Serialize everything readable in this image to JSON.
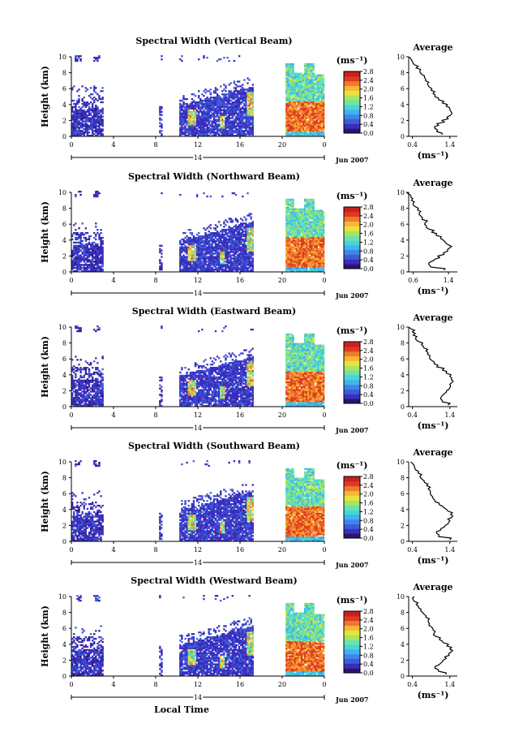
{
  "figure": {
    "xlabel": "Local Time",
    "date_label": "Jun 2007",
    "day_label": "14",
    "time_ticks": [
      "0",
      "4",
      "8",
      "12",
      "16",
      "20",
      "0"
    ],
    "height_label": "Height (km)",
    "height_ticks": [
      "0",
      "2",
      "4",
      "6",
      "8",
      "10"
    ],
    "unit_label": "(ms⁻¹)",
    "colorbar_ticks": [
      "0.0",
      "0.4",
      "0.8",
      "1.2",
      "1.6",
      "2.0",
      "2.4",
      "2.8"
    ],
    "average_title": "Average",
    "average_xlabel": "(ms⁻¹)",
    "colormap": [
      "#2a1470",
      "#3a2dbb",
      "#3f5ad8",
      "#3f86e8",
      "#3fb4ee",
      "#48d6d4",
      "#6ee2a8",
      "#a8e65f",
      "#e9e23a",
      "#f5b838",
      "#f07a2c",
      "#e03a22",
      "#c8201c"
    ]
  },
  "chart_data": [
    {
      "type": "heatmap",
      "title": "Spectral Width (Vertical Beam)",
      "average_ticks": [
        "0.4",
        "1.4"
      ],
      "average_xlim": [
        0.3,
        1.6
      ],
      "average_profile": {
        "height_km": [
          0.2,
          0.6,
          1.0,
          1.4,
          1.8,
          2.2,
          2.6,
          3.0,
          3.4,
          3.8,
          4.2,
          4.6,
          5.0,
          5.4,
          5.8,
          6.2,
          6.6,
          7.0,
          7.4,
          7.8,
          8.2,
          8.6,
          9.0,
          9.4,
          9.8
        ],
        "width_ms": [
          1.2,
          1.05,
          1.0,
          1.1,
          1.25,
          1.35,
          1.4,
          1.45,
          1.4,
          1.3,
          1.2,
          1.1,
          1.0,
          0.95,
          0.9,
          0.85,
          0.8,
          0.75,
          0.72,
          0.65,
          0.6,
          0.5,
          0.45,
          0.4,
          0.35
        ]
      }
    },
    {
      "type": "heatmap",
      "title": "Spectral Width (Northward Beam)",
      "average_ticks": [
        "0.6",
        "1.4"
      ],
      "average_xlim": [
        0.5,
        1.6
      ],
      "average_profile": {
        "height_km": [
          0.2,
          0.6,
          1.0,
          1.4,
          1.8,
          2.2,
          2.6,
          3.0,
          3.4,
          3.8,
          4.2,
          4.6,
          5.0,
          5.4,
          5.8,
          6.2,
          6.6,
          7.0,
          7.4,
          7.8,
          8.2,
          8.6,
          9.0,
          9.4,
          9.8
        ],
        "width_ms": [
          1.3,
          1.0,
          0.95,
          1.05,
          1.2,
          1.3,
          1.38,
          1.42,
          1.4,
          1.32,
          1.22,
          1.12,
          1.02,
          0.95,
          0.9,
          0.88,
          0.8,
          0.78,
          0.74,
          0.7,
          0.65,
          0.6,
          0.56,
          0.55,
          0.5
        ]
      }
    },
    {
      "type": "heatmap",
      "title": "Spectral Width (Eastward Beam)",
      "average_ticks": [
        "0.4",
        "1.4"
      ],
      "average_xlim": [
        0.3,
        1.6
      ],
      "average_profile": {
        "height_km": [
          0.2,
          0.6,
          1.0,
          1.4,
          1.8,
          2.2,
          2.6,
          3.0,
          3.4,
          3.8,
          4.2,
          4.6,
          5.0,
          5.4,
          5.8,
          6.2,
          6.6,
          7.0,
          7.4,
          7.8,
          8.2,
          8.6,
          9.0,
          9.4,
          9.8
        ],
        "width_ms": [
          1.35,
          1.2,
          1.15,
          1.2,
          1.3,
          1.38,
          1.42,
          1.45,
          1.44,
          1.4,
          1.3,
          1.2,
          1.05,
          0.98,
          0.92,
          0.86,
          0.8,
          0.76,
          0.7,
          0.64,
          0.55,
          0.48,
          0.42,
          0.4,
          0.35
        ]
      }
    },
    {
      "type": "heatmap",
      "title": "Spectral Width (Southward Beam)",
      "average_ticks": [
        "0.4",
        "1.4"
      ],
      "average_xlim": [
        0.3,
        1.6
      ],
      "average_profile": {
        "height_km": [
          0.2,
          0.6,
          1.0,
          1.4,
          1.8,
          2.2,
          2.6,
          3.0,
          3.4,
          3.8,
          4.2,
          4.6,
          5.0,
          5.4,
          5.8,
          6.2,
          6.6,
          7.0,
          7.4,
          7.8,
          8.2,
          8.6,
          9.0,
          9.4,
          9.8
        ],
        "width_ms": [
          1.4,
          1.1,
          1.05,
          1.15,
          1.25,
          1.35,
          1.4,
          1.45,
          1.42,
          1.35,
          1.25,
          1.12,
          1.0,
          0.95,
          0.9,
          0.88,
          0.82,
          0.78,
          0.72,
          0.66,
          0.6,
          0.55,
          0.48,
          0.45,
          0.4
        ]
      }
    },
    {
      "type": "heatmap",
      "title": "Spectral Width (Westward Beam)",
      "average_ticks": [
        "0.4",
        "1.4"
      ],
      "average_xlim": [
        0.3,
        1.6
      ],
      "average_profile": {
        "height_km": [
          0.2,
          0.6,
          1.0,
          1.4,
          1.8,
          2.2,
          2.6,
          3.0,
          3.4,
          3.8,
          4.2,
          4.6,
          5.0,
          5.4,
          5.8,
          6.2,
          6.6,
          7.0,
          7.4,
          7.8,
          8.2,
          8.6,
          9.0,
          9.4,
          9.8
        ],
        "width_ms": [
          1.3,
          1.1,
          1.0,
          1.1,
          1.2,
          1.3,
          1.38,
          1.42,
          1.4,
          1.32,
          1.22,
          1.12,
          1.02,
          0.98,
          0.95,
          0.9,
          0.85,
          0.82,
          0.76,
          0.7,
          0.62,
          0.56,
          0.5,
          0.45,
          0.4
        ]
      }
    }
  ]
}
